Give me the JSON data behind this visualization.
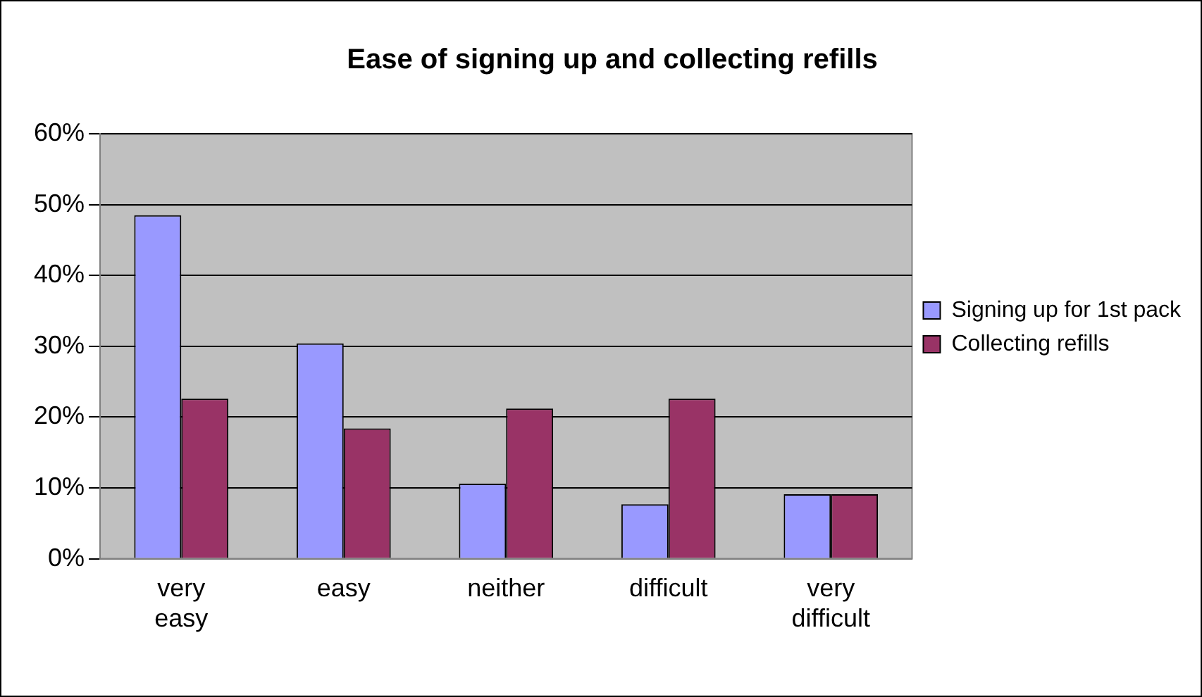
{
  "chart_data": {
    "type": "bar",
    "title": "Ease of signing up and collecting refills",
    "categories": [
      "very easy",
      "easy",
      "neither",
      "difficult",
      "very difficult"
    ],
    "series": [
      {
        "name": "Signing up for 1st pack",
        "color": "#9999ff",
        "values": [
          48.5,
          30.4,
          10.6,
          7.7,
          9.1
        ]
      },
      {
        "name": "Collecting refills",
        "color": "#993366",
        "values": [
          22.6,
          18.4,
          21.2,
          22.6,
          9.1
        ]
      }
    ],
    "ylim": [
      0,
      60
    ],
    "yticks": [
      {
        "value": 0,
        "label": "0%"
      },
      {
        "value": 10,
        "label": "10%"
      },
      {
        "value": 20,
        "label": "20%"
      },
      {
        "value": 30,
        "label": "30%"
      },
      {
        "value": 40,
        "label": "40%"
      },
      {
        "value": 50,
        "label": "50%"
      },
      {
        "value": 60,
        "label": "60%"
      }
    ],
    "grid": "y",
    "legend": "right"
  }
}
